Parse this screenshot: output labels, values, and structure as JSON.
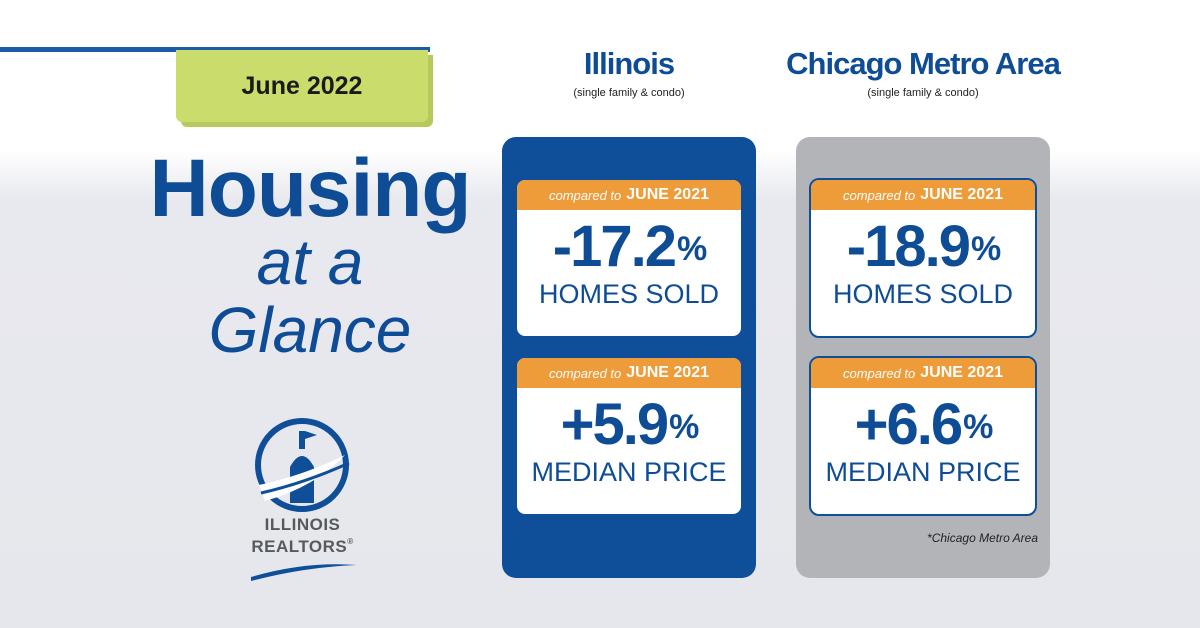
{
  "date_tab": "June 2022",
  "headline": {
    "line1": "Housing",
    "line2": "at a",
    "line3": "Glance"
  },
  "logo": {
    "line1": "ILLINOIS",
    "line2": "REALTORS",
    "mark": "®"
  },
  "colors": {
    "brand_blue": "#0e4d96",
    "panel_gray": "#b3b4b8",
    "band_orange": "#ee9b3a",
    "tab_green": "#c9dc6c"
  },
  "columns": [
    {
      "name": "Illinois",
      "sub": "(single family & condo)",
      "cards": [
        {
          "compare_prefix": "compared to",
          "compare_period": "JUNE 2021",
          "value": "-17.2",
          "unit": "%",
          "metric": "HOMES SOLD"
        },
        {
          "compare_prefix": "compared to",
          "compare_period": "JUNE 2021",
          "value": "+5.9",
          "unit": "%",
          "metric": "MEDIAN PRICE"
        }
      ]
    },
    {
      "name": "Chicago Metro Area",
      "sub": "(single family & condo)",
      "cards": [
        {
          "compare_prefix": "compared to",
          "compare_period": "JUNE 2021",
          "value": "-18.9",
          "unit": "%",
          "metric": "HOMES SOLD"
        },
        {
          "compare_prefix": "compared to",
          "compare_period": "JUNE 2021",
          "value": "+6.6",
          "unit": "%",
          "metric": "MEDIAN PRICE"
        }
      ]
    }
  ],
  "footnote": "*Chicago Metro Area"
}
